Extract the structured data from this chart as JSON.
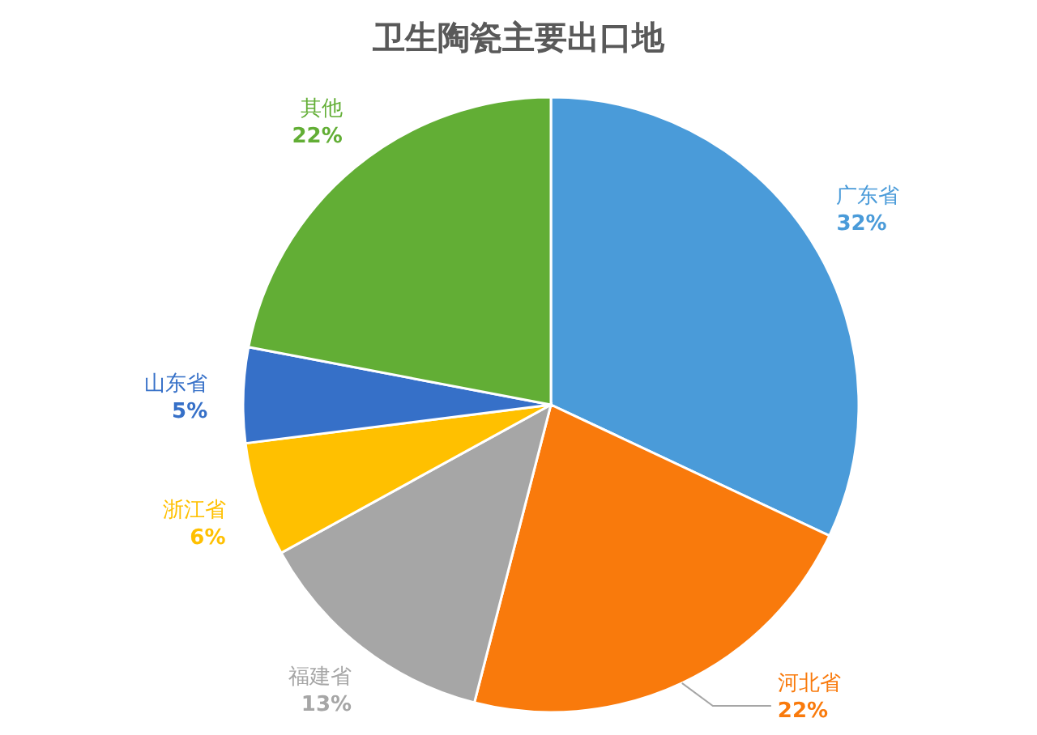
{
  "chart_data": {
    "type": "pie",
    "title": "卫生陶瓷主要出口地",
    "categories": [
      "广东省",
      "河北省",
      "福建省",
      "浙江省",
      "山东省",
      "其他"
    ],
    "values": [
      32,
      22,
      13,
      6,
      5,
      22
    ],
    "value_labels": [
      "32%",
      "22%",
      "13%",
      "6%",
      "5%",
      "22%"
    ],
    "colors": [
      "#4a9bd9",
      "#f97a0c",
      "#a6a6a6",
      "#ffc000",
      "#3670c8",
      "#62ae35"
    ]
  }
}
